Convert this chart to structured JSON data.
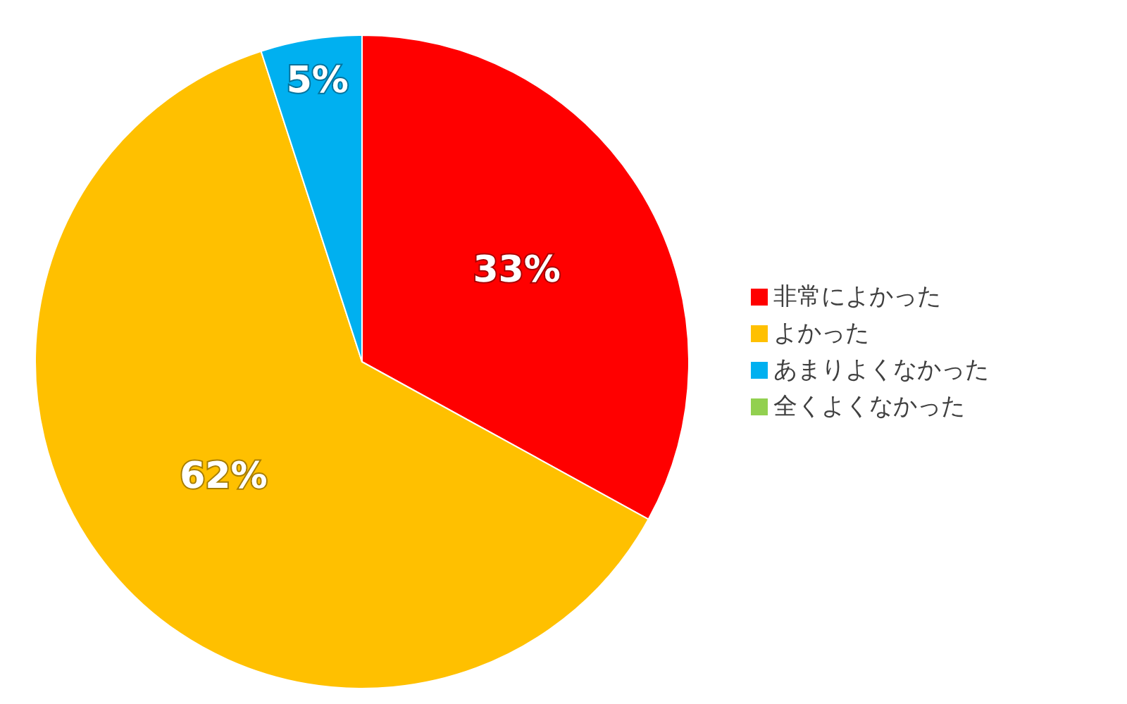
{
  "chart_data": {
    "type": "pie",
    "categories": [
      "非常によかった",
      "よかった",
      "あまりよくなかった",
      "全くよくなかった"
    ],
    "values": [
      33,
      62,
      5,
      0
    ],
    "colors": [
      "#ff0000",
      "#ffc000",
      "#00b0f0",
      "#92d050"
    ],
    "value_labels": [
      "33%",
      "62%",
      "5%",
      null
    ],
    "legend": "right"
  }
}
